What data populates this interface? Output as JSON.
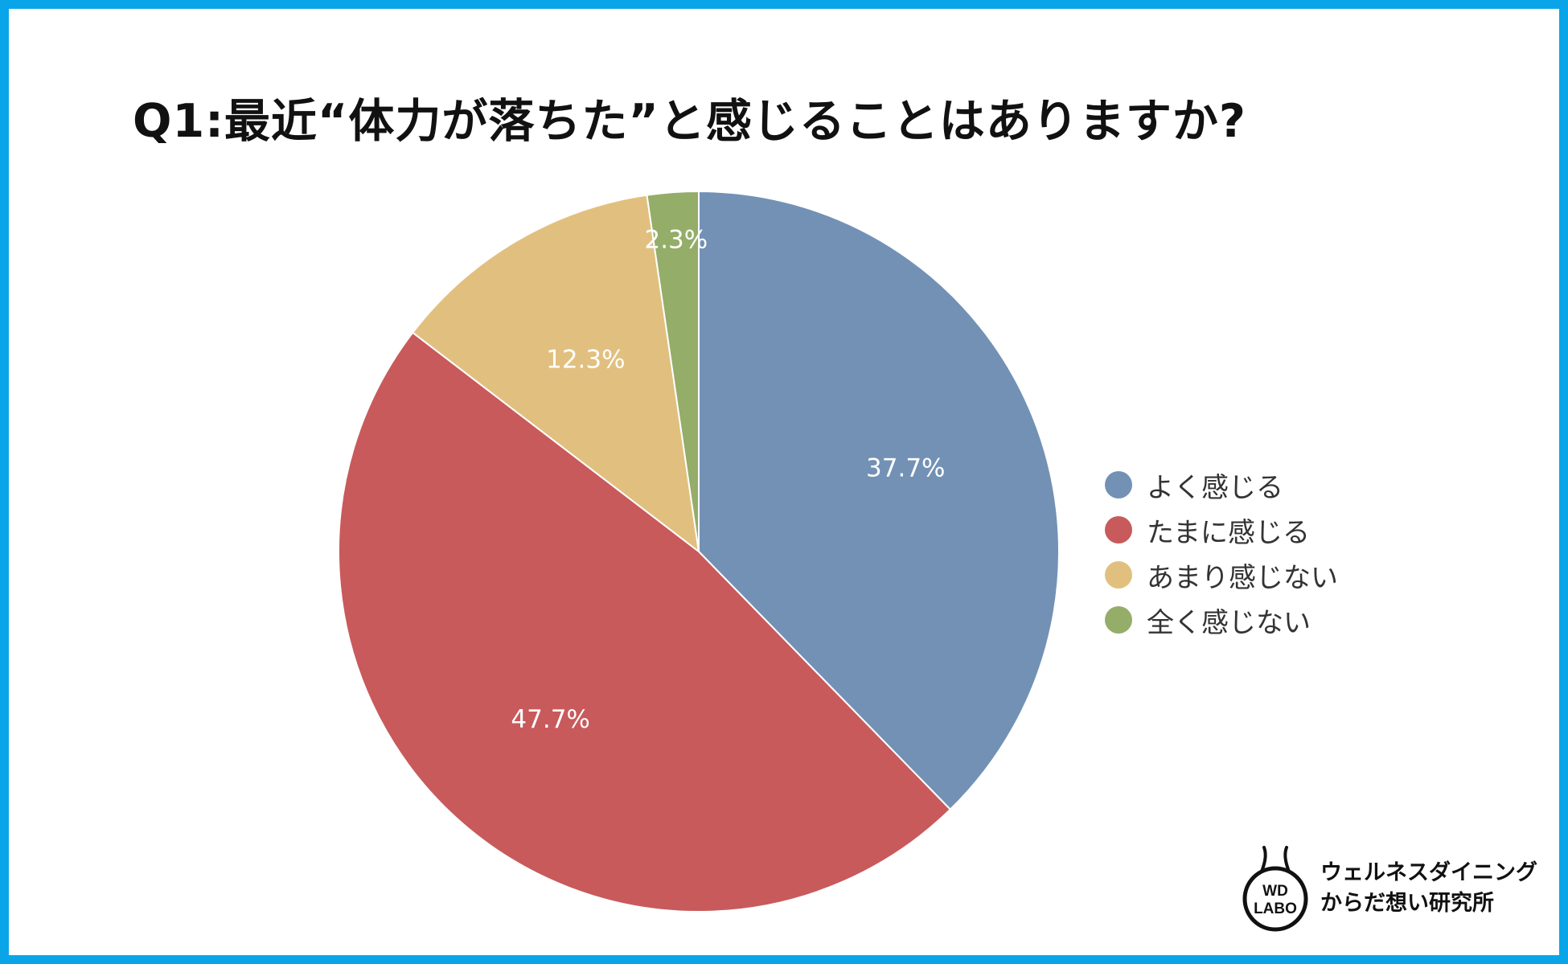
{
  "chart_data": {
    "type": "pie",
    "title": "Q1:最近“体力が落ちた”と感じることはありますか?",
    "categories": [
      "よく感じる",
      "たまに感じる",
      "あまり感じない",
      "全く感じない"
    ],
    "values": [
      37.7,
      47.7,
      12.3,
      2.3
    ],
    "data_labels": [
      "37.7%",
      "47.7%",
      "12.3%",
      "2.3%"
    ],
    "colors": [
      "#7391b5",
      "#c85a5c",
      "#e1c07f",
      "#94ad69"
    ],
    "start_angle": "12 o'clock",
    "direction": "clockwise",
    "legend_position": "right"
  },
  "brand": {
    "logo_line1": "WD",
    "logo_line2": "LABO",
    "name_line1": "ウェルネスダイニング",
    "name_line2": "からだ想い研究所"
  }
}
